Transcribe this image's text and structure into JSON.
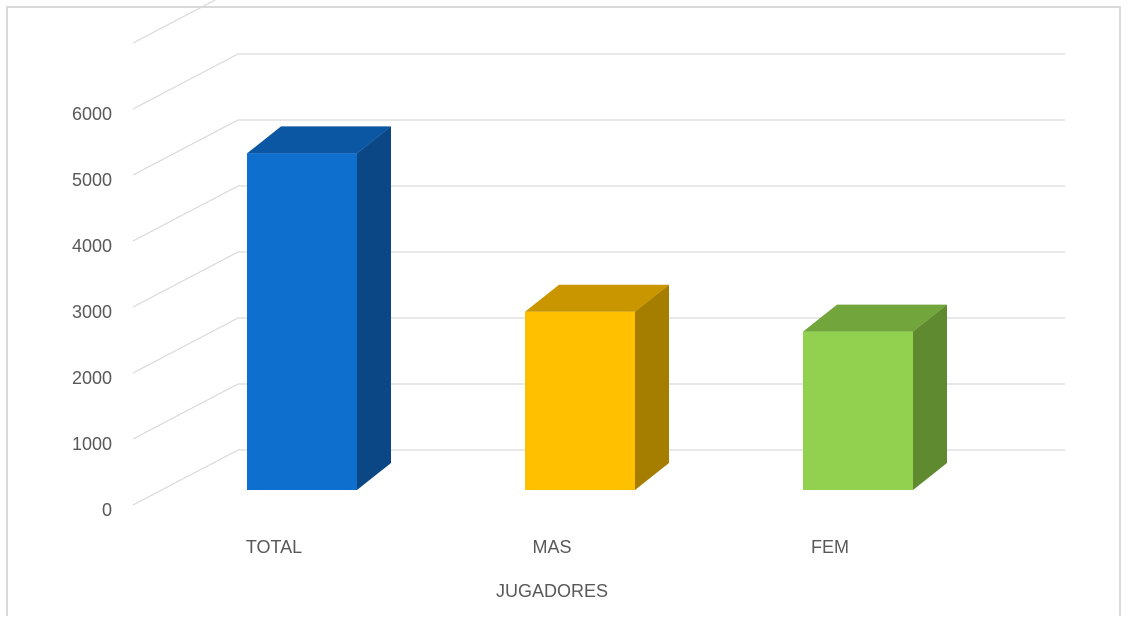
{
  "chart_data": {
    "type": "bar",
    "style": "3d-column",
    "title": "",
    "xlabel": "JUGADORES",
    "ylabel": "",
    "categories": [
      "TOTAL",
      "MAS",
      "FEM"
    ],
    "values": [
      5100,
      2700,
      2400
    ],
    "ylim": [
      0,
      7000
    ],
    "yticks": [
      "0",
      "1000",
      "2000",
      "3000",
      "4000",
      "5000",
      "6000"
    ],
    "grid": true,
    "legend": "none",
    "colors": {
      "front": [
        "#0f6fcf",
        "#ffc000",
        "#92d050"
      ],
      "top": [
        "#0b57a4",
        "#c99600",
        "#72a63c"
      ],
      "side": [
        "#0b4784",
        "#a57e00",
        "#5f8a2f"
      ],
      "grid": "#d9d9d9",
      "text": "#595959"
    }
  }
}
